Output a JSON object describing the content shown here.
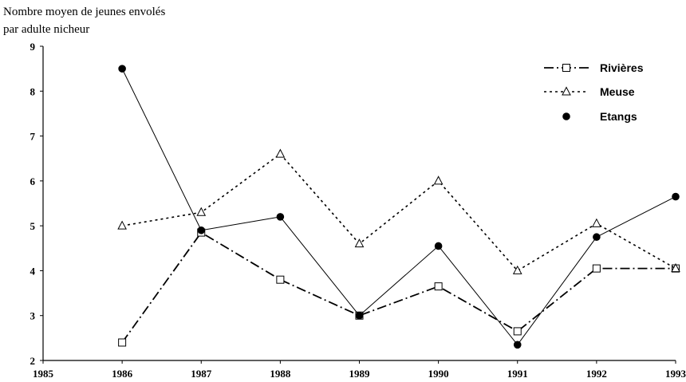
{
  "chart_data": {
    "type": "line",
    "ylabel": [
      "Nombre moyen de jeunes envolés",
      "par adulte nicheur"
    ],
    "xlabel": "",
    "x": [
      1985,
      1986,
      1987,
      1988,
      1989,
      1990,
      1991,
      1992,
      1993
    ],
    "xlim": [
      1985,
      1993
    ],
    "ylim": [
      2,
      9
    ],
    "yticks": [
      2,
      3,
      4,
      5,
      6,
      7,
      8,
      9
    ],
    "grid": false,
    "legend_position": "top-right",
    "series": [
      {
        "name": "Rivières",
        "style": "dash-dot",
        "marker": "open-square",
        "x": [
          1986,
          1987,
          1988,
          1989,
          1990,
          1991,
          1992,
          1993
        ],
        "values": [
          2.4,
          4.85,
          3.8,
          3.0,
          3.65,
          2.65,
          4.05,
          4.05
        ]
      },
      {
        "name": "Meuse",
        "style": "dotted",
        "marker": "open-triangle",
        "x": [
          1986,
          1987,
          1988,
          1989,
          1990,
          1991,
          1992,
          1993
        ],
        "values": [
          5.0,
          5.3,
          6.6,
          4.6,
          6.0,
          4.0,
          5.05,
          4.05
        ]
      },
      {
        "name": "Etangs",
        "style": "solid",
        "marker": "filled-circle",
        "x": [
          1986,
          1987,
          1988,
          1989,
          1990,
          1991,
          1992,
          1993
        ],
        "values": [
          8.5,
          4.9,
          5.2,
          3.0,
          4.55,
          2.35,
          4.75,
          5.65
        ]
      }
    ]
  }
}
